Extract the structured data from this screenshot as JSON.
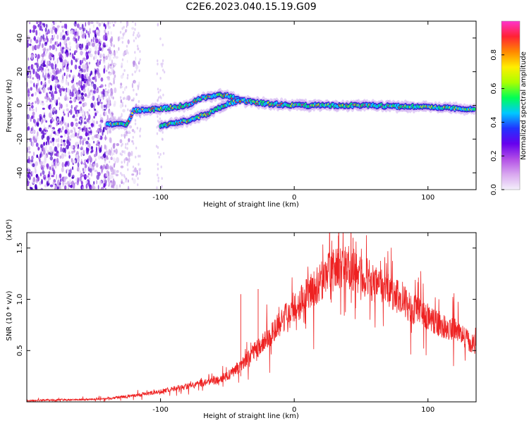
{
  "figure": {
    "title": "C2E6.2023.040.15.19.G09"
  },
  "chart_data": [
    {
      "type": "heatmap",
      "xlabel": "Height of straight line (km)",
      "ylabel": "Frequency (Hz)",
      "xlim": [
        -200,
        136
      ],
      "ylim": [
        -50,
        50
      ],
      "x_ticks": [
        -100,
        0,
        100
      ],
      "y_ticks": [
        -40,
        -20,
        0,
        20,
        40
      ],
      "colorbar": {
        "label": "Normalized spectral amplitude",
        "range": [
          0,
          1
        ],
        "ticks": [
          0.0,
          0.2,
          0.4,
          0.6,
          0.8
        ],
        "colors": [
          "#f4f0fb",
          "#d9a8ef",
          "#b24ee6",
          "#6600ee",
          "#2233ff",
          "#00c8ff",
          "#00ff55",
          "#aaff00",
          "#ffee00",
          "#ff8800",
          "#ff2233",
          "#ff33cc"
        ]
      },
      "ridge_trace": [
        {
          "x": -140,
          "f": -11
        },
        {
          "x": -125,
          "f": -11
        },
        {
          "x": -120,
          "f": -3
        },
        {
          "x": -100,
          "f": -2
        },
        {
          "x": -80,
          "f": 0
        },
        {
          "x": -70,
          "f": 4
        },
        {
          "x": -60,
          "f": 6
        },
        {
          "x": -50,
          "f": 6
        },
        {
          "x": -40,
          "f": 3
        },
        {
          "x": -20,
          "f": 1
        },
        {
          "x": 0,
          "f": 0
        },
        {
          "x": 50,
          "f": 0
        },
        {
          "x": 100,
          "f": -1
        },
        {
          "x": 130,
          "f": -2
        }
      ],
      "secondary_trace": [
        {
          "x": -100,
          "f": -12
        },
        {
          "x": -80,
          "f": -9
        },
        {
          "x": -65,
          "f": -5
        },
        {
          "x": -50,
          "f": 1
        },
        {
          "x": -40,
          "f": 3
        }
      ],
      "noise_region": {
        "x_from": -200,
        "x_to": -115
      }
    },
    {
      "type": "line",
      "xlabel": "Height of straight line (km)",
      "ylabel": "SNR (10 * v/v)",
      "y_multiplier_label": "(x10⁴)",
      "xlim": [
        -200,
        136
      ],
      "ylim": [
        0,
        1.65
      ],
      "x_ticks": [
        -100,
        0,
        100
      ],
      "y_ticks": [
        0.5,
        1.0,
        1.5
      ],
      "series": [
        {
          "color": "#ee2222",
          "x": [
            -200,
            -180,
            -160,
            -140,
            -120,
            -100,
            -90,
            -80,
            -70,
            -60,
            -50,
            -40,
            -35,
            -30,
            -20,
            -10,
            0,
            10,
            20,
            30,
            40,
            50,
            60,
            70,
            80,
            90,
            100,
            110,
            120,
            130,
            136
          ],
          "y": [
            0.01,
            0.02,
            0.02,
            0.03,
            0.06,
            0.1,
            0.13,
            0.15,
            0.18,
            0.2,
            0.25,
            0.35,
            0.42,
            0.5,
            0.62,
            0.78,
            0.9,
            1.05,
            1.18,
            1.3,
            1.32,
            1.25,
            1.15,
            1.08,
            1.0,
            0.9,
            0.82,
            0.75,
            0.7,
            0.6,
            0.55
          ]
        }
      ],
      "spikes": [
        {
          "x": -40,
          "y": 1.05
        },
        {
          "x": -27,
          "y": 1.1
        },
        {
          "x": 33,
          "y": 1.62
        },
        {
          "x": 44,
          "y": 1.6
        }
      ]
    }
  ]
}
